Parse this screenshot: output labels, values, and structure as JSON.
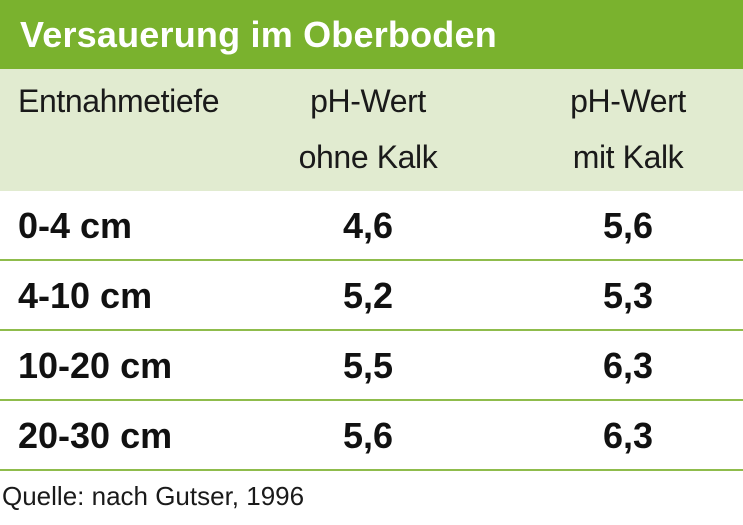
{
  "title": "Versauerung im Oberboden",
  "columns": [
    {
      "line1": "Entnahmetiefe",
      "line2": ""
    },
    {
      "line1": "pH-Wert",
      "line2": "ohne Kalk"
    },
    {
      "line1": "pH-Wert",
      "line2": "mit Kalk"
    }
  ],
  "rows": [
    {
      "depth": "0-4 cm",
      "ohne": "4,6",
      "mit": "5,6"
    },
    {
      "depth": "4-10 cm",
      "ohne": "5,2",
      "mit": "5,3"
    },
    {
      "depth": "10-20 cm",
      "ohne": "5,5",
      "mit": "6,3"
    },
    {
      "depth": "20-30 cm",
      "ohne": "5,6",
      "mit": "6,3"
    }
  ],
  "source": "Quelle: nach Gutser, 1996",
  "colors": {
    "accent": "#7ab22e",
    "header_bg": "#e1ebd0",
    "rule": "#8fbc4c"
  }
}
